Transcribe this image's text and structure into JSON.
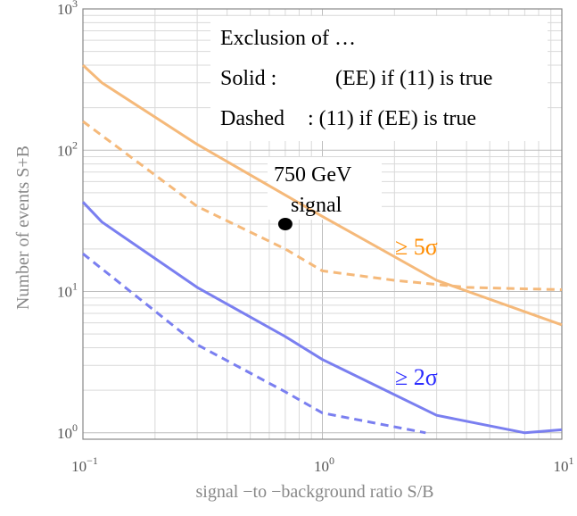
{
  "chart_data": {
    "type": "line",
    "xscale": "log",
    "yscale": "log",
    "xlim": [
      0.1,
      10
    ],
    "ylim": [
      0.9,
      1000
    ],
    "grid": true,
    "xlabel": "signal  −to −background    ratio   S/B",
    "ylabel": "Number    of events    S+B",
    "x_ticks": [
      {
        "value": 0.1,
        "base": "10",
        "exp": "−1"
      },
      {
        "value": 1,
        "base": "10",
        "exp": "0"
      },
      {
        "value": 10,
        "base": "10",
        "exp": "1"
      }
    ],
    "y_ticks": [
      {
        "value": 1,
        "base": "10",
        "exp": "0"
      },
      {
        "value": 10,
        "base": "10",
        "exp": "1"
      },
      {
        "value": 100,
        "base": "10",
        "exp": "2"
      },
      {
        "value": 1000,
        "base": "10",
        "exp": "3"
      }
    ],
    "annotations": {
      "line1": "Exclusion    of …",
      "line2_a": "Solid :",
      "line2_b": "(EE) if (11) is true",
      "line3_a": "Dashed",
      "line3_b": ": (11) if (EE) is true",
      "signal_line1": "750  GeV",
      "signal_line2": "signal",
      "label_5sigma": "≥ 5σ",
      "label_2sigma": "≥ 2σ"
    },
    "signal_point": {
      "x": 0.7,
      "y": 30
    },
    "series": [
      {
        "color": "#f5b97a",
        "dash": false,
        "x": [
          0.1,
          0.12,
          0.3,
          1.0,
          3.0,
          10.0
        ],
        "y": [
          400,
          300,
          110,
          34,
          12,
          5.8
        ]
      },
      {
        "color": "#f5b97a",
        "dash": true,
        "x": [
          0.1,
          0.3,
          0.7,
          1.0,
          2.0,
          4.0,
          10.0
        ],
        "y": [
          160,
          40,
          20,
          14,
          12,
          10.7,
          10.3
        ]
      },
      {
        "color": "#7a7ff0",
        "dash": false,
        "x": [
          0.1,
          0.12,
          0.3,
          0.7,
          1.0,
          3.0,
          7.0,
          10.0
        ],
        "y": [
          43,
          31,
          10.7,
          4.8,
          3.3,
          1.33,
          1.0,
          1.05
        ]
      },
      {
        "color": "#7a7ff0",
        "dash": true,
        "x": [
          0.1,
          0.3,
          0.7,
          1.0,
          2.7
        ],
        "y": [
          18.5,
          4.2,
          1.95,
          1.38,
          1.0
        ]
      }
    ],
    "colors": {
      "orange_text": "#ff8c00",
      "blue_text": "#2b2bff",
      "point": "#000000"
    }
  }
}
